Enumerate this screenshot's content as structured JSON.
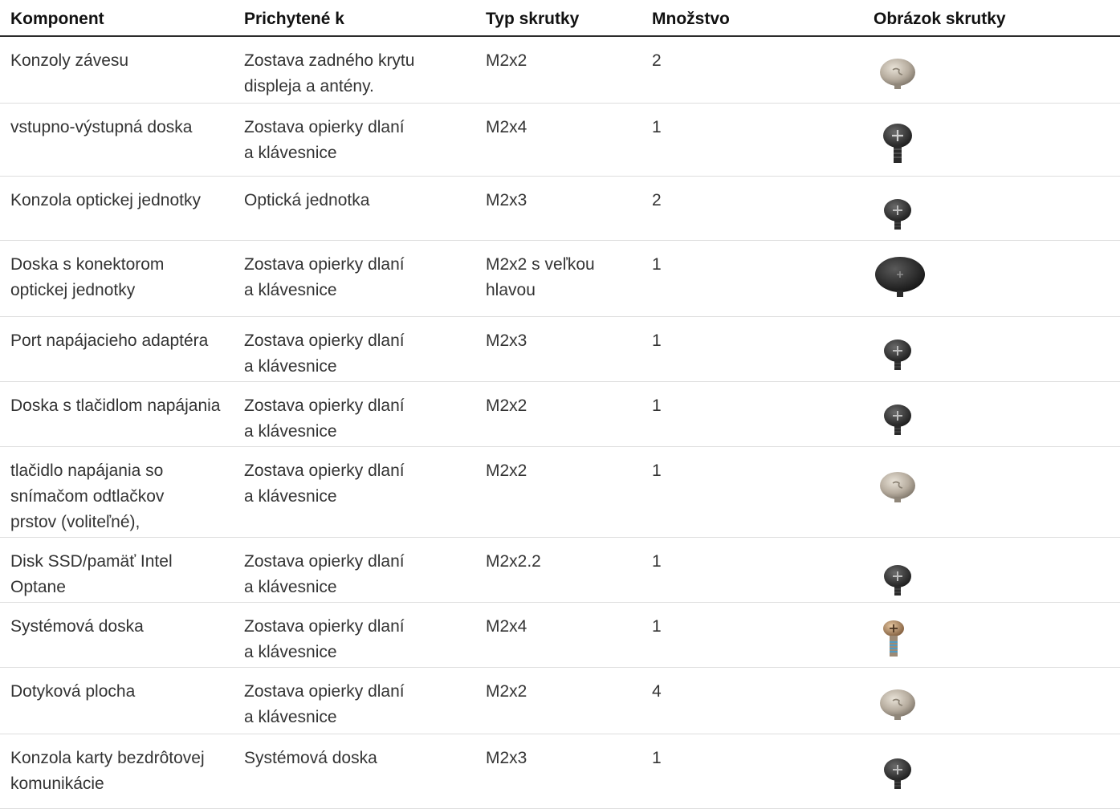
{
  "headers": [
    "Komponent",
    "Prichytené k",
    "Typ skrutky",
    "Množstvo",
    "Obrázok skrutky"
  ],
  "rows": [
    {
      "component": "Konzoly závesu",
      "attached_to": "Zostava zadného krytu\ndispleja a antény.",
      "screw_type": "M2x2",
      "quantity": "2",
      "icon": "silver-screw-icon"
    },
    {
      "component": "vstupno-výstupná doska",
      "attached_to": "Zostava opierky dlaní\na klávesnice",
      "screw_type": "M2x4",
      "quantity": "1",
      "icon": "black-long-screw-icon"
    },
    {
      "component": "Konzola optickej jednotky",
      "attached_to": "Optická jednotka",
      "screw_type": "M2x3",
      "quantity": "2",
      "icon": "black-screw-icon"
    },
    {
      "component": "Doska s konektorom\noptickej jednotky",
      "attached_to": "Zostava opierky dlaní\na klávesnice",
      "screw_type": "M2x2 s veľkou\nhlavou",
      "quantity": "1",
      "icon": "black-large-head-screw-icon"
    },
    {
      "component": "Port napájacieho adaptéra",
      "attached_to": "Zostava opierky dlaní\na klávesnice",
      "screw_type": "M2x3",
      "quantity": "1",
      "icon": "black-screw-icon"
    },
    {
      "component": "Doska s tlačidlom napájania",
      "attached_to": "Zostava opierky dlaní\na klávesnice",
      "screw_type": "M2x2",
      "quantity": "1",
      "icon": "black-screw-icon"
    },
    {
      "component": "tlačidlo napájania so\nsnímačom odtlačkov\nprstov (voliteľné),",
      "attached_to": "Zostava opierky dlaní\na klávesnice",
      "screw_type": "M2x2",
      "quantity": "1",
      "icon": "silver-screw-icon"
    },
    {
      "component": "Disk SSD/pamäť Intel\nOptane",
      "attached_to": "Zostava opierky dlaní\na klávesnice",
      "screw_type": "M2x2.2",
      "quantity": "1",
      "icon": "black-screw-icon"
    },
    {
      "component": "Systémová doska",
      "attached_to": "Zostava opierky dlaní\na klávesnice",
      "screw_type": "M2x4",
      "quantity": "1",
      "icon": "gold-threaded-screw-icon"
    },
    {
      "component": "Dotyková plocha",
      "attached_to": "Zostava opierky dlaní\na klávesnice",
      "screw_type": "M2x2",
      "quantity": "4",
      "icon": "silver-screw-icon"
    },
    {
      "component": "Konzola karty bezdrôtovej\nkomunikácie",
      "attached_to": "Systémová doska",
      "screw_type": "M2x3",
      "quantity": "1",
      "icon": "black-screw-icon"
    }
  ]
}
